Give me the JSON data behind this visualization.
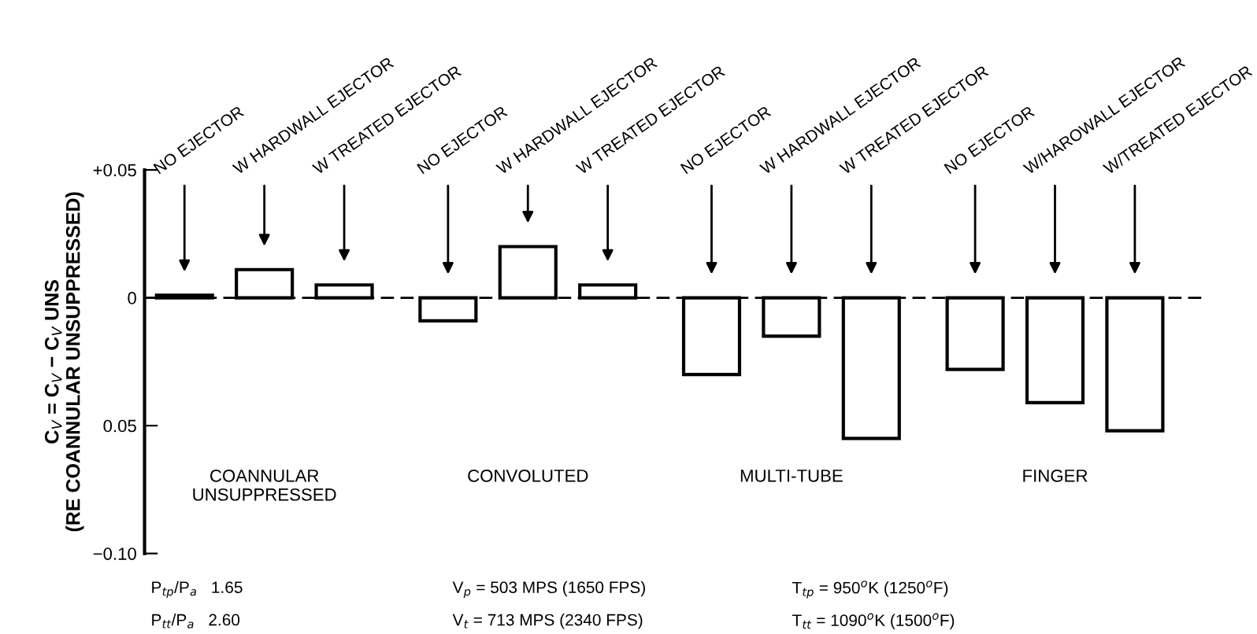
{
  "chart_data": {
    "type": "bar",
    "ylabel": "C$_{V}$ = C$_{V}$ − C$_{V}$ UNS\n(RE COANNULAR UNSUPPRESSED)",
    "categories": [
      "COANNULAR\nUNSUPPRESSED",
      "CONVOLUTED",
      "MULTI-TUBE",
      "FINGER"
    ],
    "series": [
      {
        "color": "#ffffff",
        "values": [
          0.001,
          -0.009,
          -0.03,
          -0.028
        ]
      },
      {
        "color": "#ffffff",
        "values": [
          0.011,
          0.02,
          -0.015,
          -0.041
        ]
      },
      {
        "color": "#ffffff",
        "values": [
          0.005,
          0.005,
          -0.055,
          -0.052
        ]
      }
    ],
    "ylim": [
      -0.1,
      0.05
    ],
    "yticks": [
      {
        "value": 0.05,
        "label": "+0.05"
      },
      0,
      {
        "value": -0.05,
        "label": "0.05"
      },
      {
        "value": -0.1,
        "label": "−0.10"
      }
    ],
    "ref_lines": [
      {
        "axis": "y",
        "value": 0,
        "line_style": "dashed",
        "color": "#000000"
      }
    ],
    "annotations": [
      "NO EJECTOR",
      "W HARDWALL EJECTOR",
      "W TREATED EJECTOR",
      "NO EJECTOR",
      "W HARDWALL EJECTOR",
      "W TREATED EJECTOR",
      "NO EJECTOR",
      "W HARDWALL EJECTOR",
      "W TREATED EJECTOR",
      "NO EJECTOR",
      "W/HAROWALL EJECTOR",
      "W/TREATED EJECTOR",
      "P$_{tp}$/P$_{a}$   1.65",
      "V$_{p}$ = 503 MPS (1650 FPS)",
      "T$_{tp}$ = 950$^{o}$K (1250$^{o}$F)",
      "P$_{tt}$/P$_{a}$   2.60",
      "V$_{t}$ = 713 MPS (2340 FPS)",
      "T$_{tt}$ = 1090$^{o}$K (1500$^{o}$F)"
    ],
    "grid": false,
    "legend": false
  }
}
